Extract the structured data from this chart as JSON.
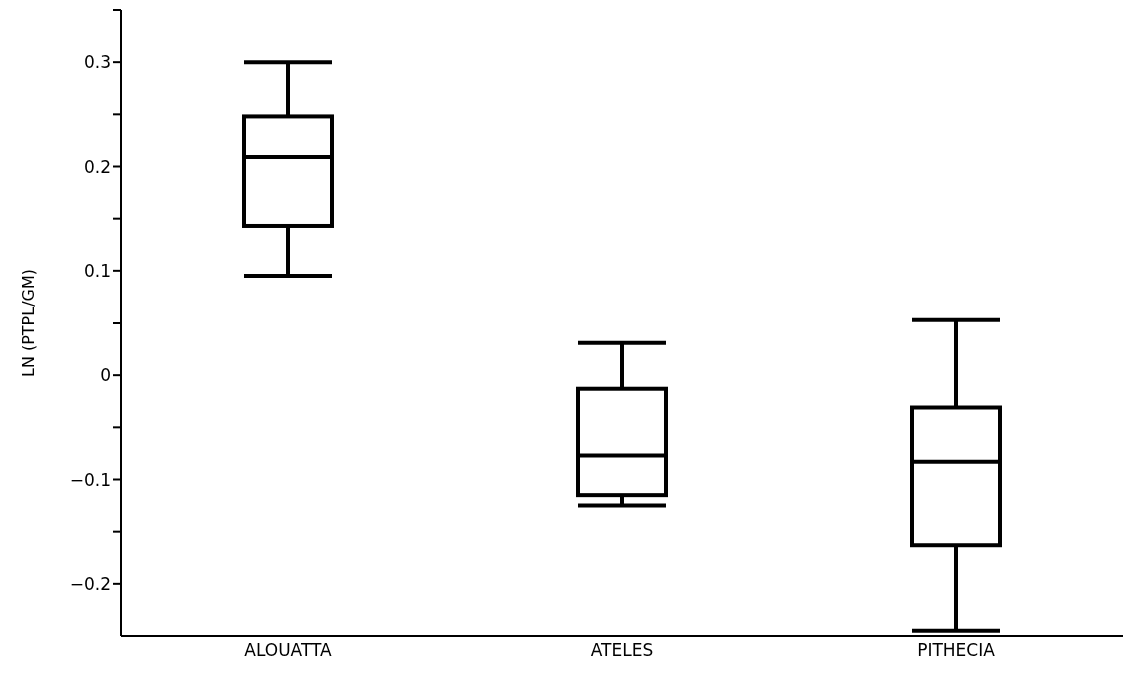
{
  "chart_data": {
    "type": "box",
    "ylabel": "LN (PTPL/GM)",
    "categories": [
      "ALOUATTA",
      "ATELES",
      "PITHECIA"
    ],
    "boxes": [
      {
        "low": 0.095,
        "q1": 0.143,
        "median": 0.209,
        "q3": 0.248,
        "high": 0.3
      },
      {
        "low": -0.125,
        "q1": -0.115,
        "median": -0.077,
        "q3": -0.013,
        "high": 0.031
      },
      {
        "low": -0.245,
        "q1": -0.163,
        "median": -0.083,
        "q3": -0.031,
        "high": 0.053
      }
    ],
    "color": "#000000",
    "ylim": [
      -0.25,
      0.35
    ],
    "yticks": [
      -0.2,
      {
        "value": -0.15,
        "label": null
      },
      -0.1,
      {
        "value": -0.05,
        "label": null
      },
      0,
      {
        "value": 0.05,
        "label": null
      },
      0.1,
      {
        "value": 0.15,
        "label": null
      },
      0.2,
      {
        "value": 0.25,
        "label": null
      },
      0.3,
      {
        "value": 0.35,
        "label": null
      }
    ]
  }
}
